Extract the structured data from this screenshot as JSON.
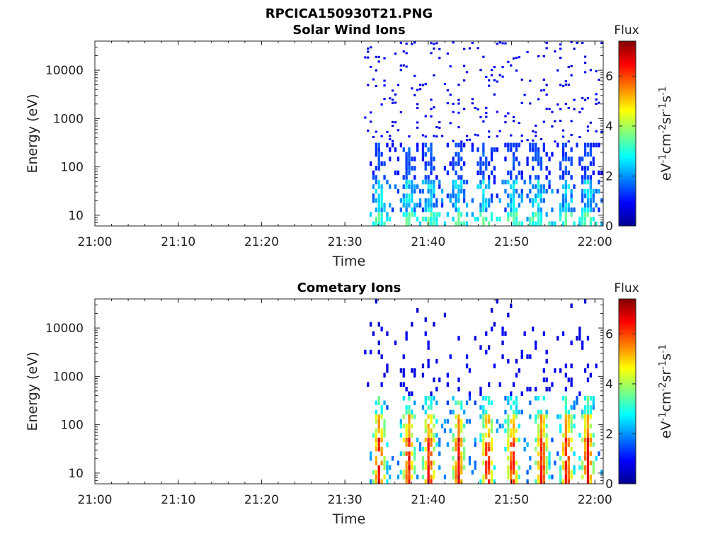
{
  "page_title": "RPCICA150930T21.PNG",
  "chart_data": [
    {
      "type": "heatmap",
      "title": "Solar Wind Ions",
      "xlabel": "Time",
      "ylabel": "Energy (eV)",
      "x_ticks": [
        "21:00",
        "21:10",
        "21:20",
        "21:30",
        "21:40",
        "21:50",
        "22:00"
      ],
      "x_range": [
        "21:00",
        "22:01"
      ],
      "y_ticks": [
        10,
        100,
        1000,
        10000
      ],
      "y_scale": "log",
      "y_range": [
        6,
        40000
      ],
      "data_start": "21:32",
      "colorbar": {
        "title": "Flux",
        "ticks": [
          0,
          2,
          4,
          6
        ],
        "range": [
          0,
          7.4
        ],
        "label": "eV-1cm-2sr-1s-1",
        "colormap": "jet"
      },
      "spike_times_min": [
        34.0,
        37.5,
        40.0,
        43.5,
        46.5,
        50.0,
        53.0,
        56.5,
        59.0
      ],
      "peak_flux": 3.0
    },
    {
      "type": "heatmap",
      "title": "Cometary Ions",
      "xlabel": "Time",
      "ylabel": "Energy (eV)",
      "x_ticks": [
        "21:00",
        "21:10",
        "21:20",
        "21:30",
        "21:40",
        "21:50",
        "22:00"
      ],
      "x_range": [
        "21:00",
        "22:01"
      ],
      "y_ticks": [
        10,
        100,
        1000,
        10000
      ],
      "y_scale": "log",
      "y_range": [
        6,
        40000
      ],
      "data_start": "21:32",
      "colorbar": {
        "title": "Flux",
        "ticks": [
          0,
          2,
          4,
          6
        ],
        "range": [
          0,
          7.4
        ],
        "label": "eV-1cm-2sr-1s-1",
        "colormap": "jet"
      },
      "spike_times_min": [
        34.0,
        37.5,
        40.0,
        43.5,
        47.0,
        50.0,
        53.5,
        56.5,
        59.0
      ],
      "peak_flux": 6.8
    }
  ]
}
